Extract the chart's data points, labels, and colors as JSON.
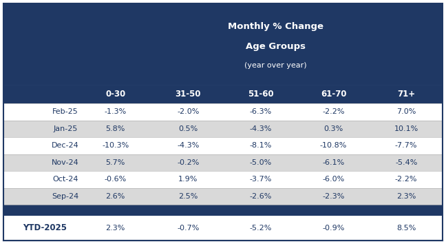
{
  "title_line1": "Monthly % Change",
  "title_line2": "Age Groups",
  "title_line3": "(year over year)",
  "col_headers": [
    "0-30",
    "31-50",
    "51-60",
    "61-70",
    "71+"
  ],
  "row_labels": [
    "Feb-25",
    "Jan-25",
    "Dec-24",
    "Nov-24",
    "Oct-24",
    "Sep-24"
  ],
  "table_data": [
    [
      "-1.3%",
      "-2.0%",
      "-6.3%",
      "-2.2%",
      "7.0%"
    ],
    [
      "5.8%",
      "0.5%",
      "-4.3%",
      "0.3%",
      "10.1%"
    ],
    [
      "-10.3%",
      "-4.3%",
      "-8.1%",
      "-10.8%",
      "-7.7%"
    ],
    [
      "5.7%",
      "-0.2%",
      "-5.0%",
      "-6.1%",
      "-5.4%"
    ],
    [
      "-0.6%",
      "1.9%",
      "-3.7%",
      "-6.0%",
      "-2.2%"
    ],
    [
      "2.6%",
      "2.5%",
      "-2.6%",
      "-2.3%",
      "2.3%"
    ]
  ],
  "ytd_label": "YTD-2025",
  "ytd_data": [
    "2.3%",
    "-0.7%",
    "-5.2%",
    "-0.9%",
    "8.5%"
  ],
  "header_bg": "#1F3864",
  "header_text": "#FFFFFF",
  "col_header_bg": "#1F3864",
  "col_header_text": "#FFFFFF",
  "row_bg_odd": "#FFFFFF",
  "row_bg_even": "#D9D9D9",
  "separator_bg": "#1F3864",
  "ytd_bg": "#FFFFFF",
  "ytd_text": "#1F3864",
  "body_text": "#1F3864",
  "border_color": "#1F3864",
  "title_fontsize": 9.5,
  "subtitle_fontsize": 8.0,
  "col_hdr_fontsize": 8.5,
  "body_fontsize": 8.0,
  "ytd_fontsize": 8.5
}
